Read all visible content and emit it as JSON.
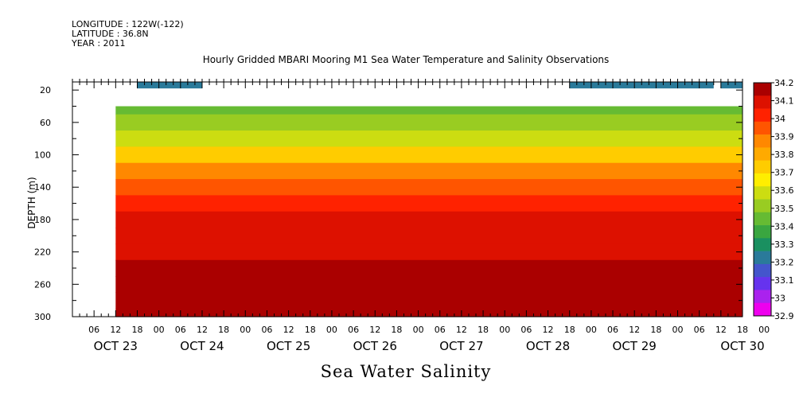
{
  "header": {
    "longitude": "LONGITUDE : 122W(-122)",
    "latitude": "LATITUDE : 36.8N",
    "year": "YEAR : 2011",
    "title": "Hourly Gridded MBARI Mooring M1 Sea Water Temperature and Salinity Observations"
  },
  "chart_data": {
    "type": "heatmap",
    "title": "Hourly Gridded MBARI Mooring M1 Sea Water Temperature and Salinity Observations",
    "subtitle": "Sea Water Salinity",
    "ylabel": "DEPTH (m)",
    "y_axis": {
      "ticks": [
        20,
        60,
        100,
        140,
        180,
        220,
        260,
        300
      ],
      "range": [
        10,
        300
      ],
      "inverted": true
    },
    "x_axis": {
      "hour_ticks": [
        "06",
        "12",
        "18",
        "00",
        "06",
        "12",
        "18",
        "00",
        "06",
        "12",
        "18",
        "00",
        "06",
        "12",
        "18",
        "00",
        "06",
        "12",
        "18",
        "00",
        "06",
        "12",
        "18",
        "00",
        "06",
        "12",
        "18",
        "00",
        "06",
        "12",
        "18",
        "00"
      ],
      "date_labels": [
        "OCT 23",
        "OCT 24",
        "OCT 25",
        "OCT 26",
        "OCT 27",
        "OCT 28",
        "OCT 29",
        "OCT 30"
      ],
      "range_hours": [
        0,
        186
      ]
    },
    "colorbar": {
      "levels": [
        32.9,
        33,
        33.1,
        33.2,
        33.3,
        33.4,
        33.5,
        33.6,
        33.7,
        33.8,
        33.9,
        34,
        34.1,
        34.2
      ],
      "colors": [
        "#ee00ee",
        "#aa22ee",
        "#6633ee",
        "#4455cc",
        "#2a7a9a",
        "#1a9060",
        "#3aa640",
        "#66bb33",
        "#99cc22",
        "#ccdd11",
        "#ffee00",
        "#ffcc00",
        "#ffaa00",
        "#ff8800",
        "#ff5500",
        "#ff2200",
        "#dd1100",
        "#aa0000"
      ]
    },
    "depth_profile": [
      {
        "depth": 40,
        "salinity": 33.45
      },
      {
        "depth": 60,
        "salinity": 33.52
      },
      {
        "depth": 80,
        "salinity": 33.62
      },
      {
        "depth": 100,
        "salinity": 33.74
      },
      {
        "depth": 120,
        "salinity": 33.86
      },
      {
        "depth": 140,
        "salinity": 33.95
      },
      {
        "depth": 160,
        "salinity": 34.02
      },
      {
        "depth": 180,
        "salinity": 34.06
      },
      {
        "depth": 200,
        "salinity": 34.08
      },
      {
        "depth": 220,
        "salinity": 34.12
      },
      {
        "depth": 240,
        "salinity": 34.16
      },
      {
        "depth": 260,
        "salinity": 34.19
      },
      {
        "depth": 280,
        "salinity": 34.17
      },
      {
        "depth": 300,
        "salinity": 34.14
      }
    ],
    "surface_band": [
      {
        "start_hour": 18,
        "end_hour": 36,
        "salinity": 33.26
      },
      {
        "start_hour": 138,
        "end_hour": 178,
        "salinity": 33.2
      },
      {
        "start_hour": 180,
        "end_hour": 186,
        "salinity": 33.26
      }
    ]
  }
}
